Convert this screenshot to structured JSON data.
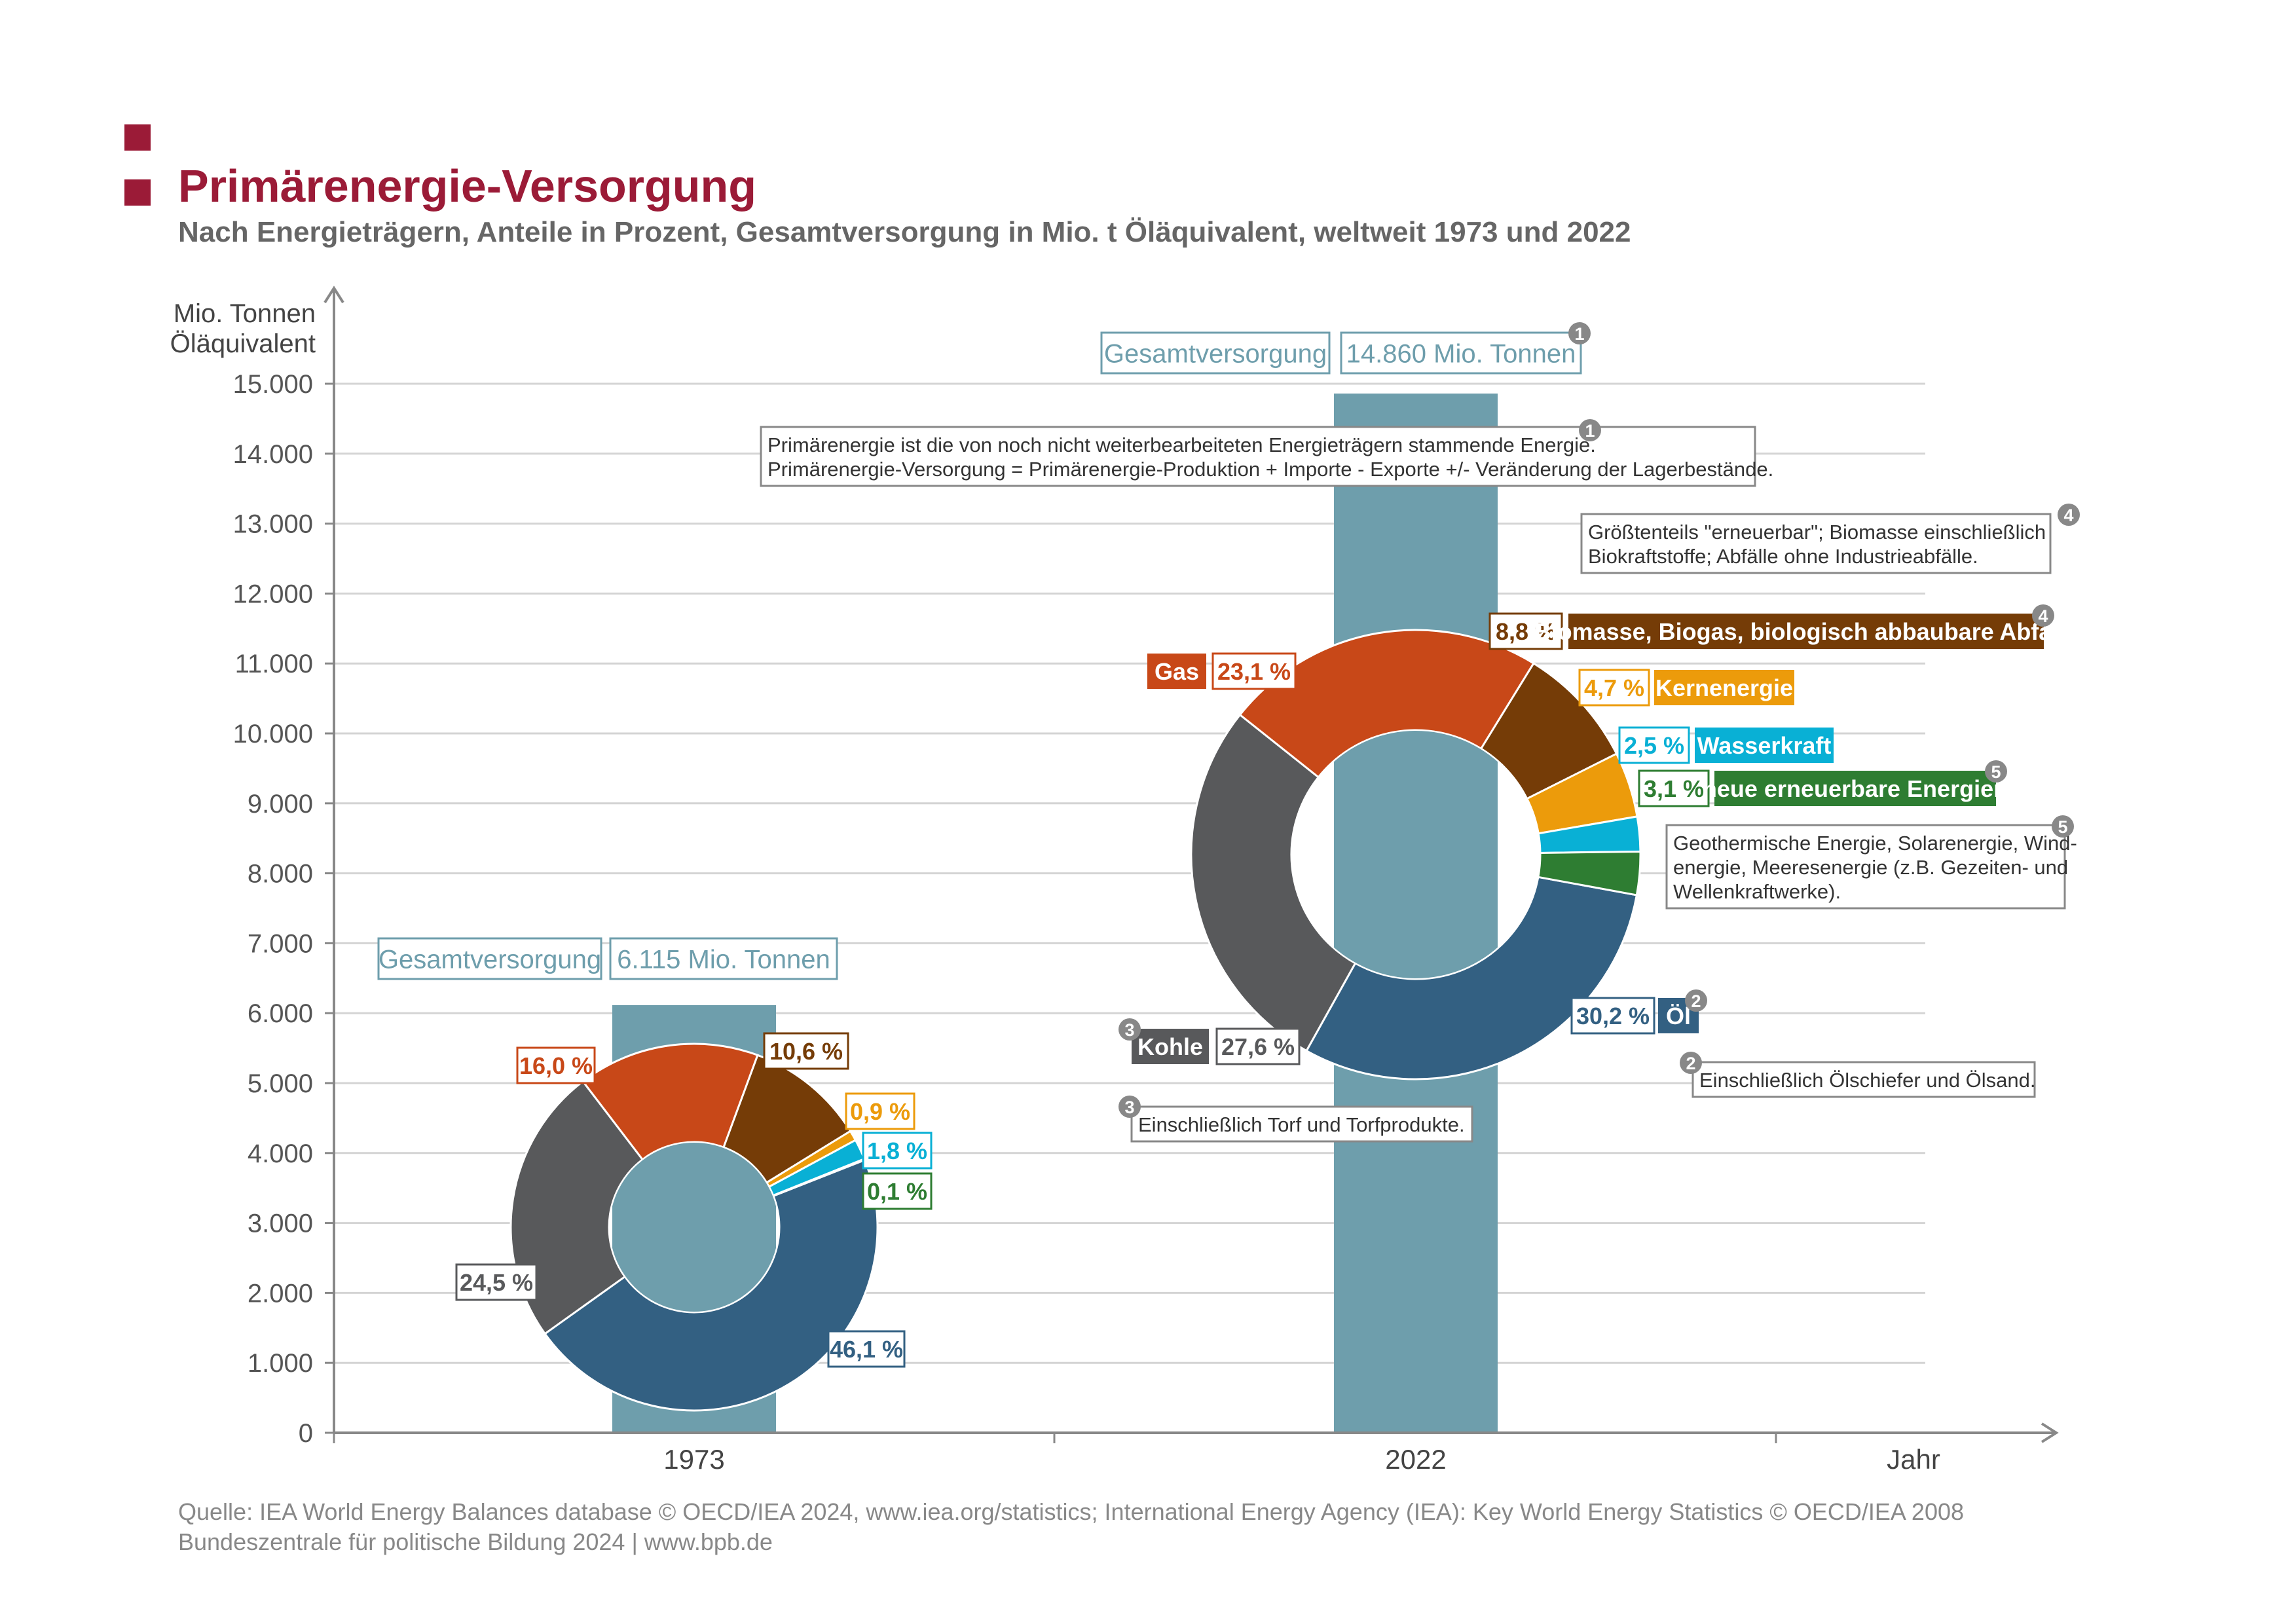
{
  "header": {
    "title": "Primärenergie-Versorgung",
    "subtitle": "Nach Energieträgern, Anteile in Prozent, Gesamtversorgung in Mio. t Öläquivalent, weltweit 1973 und 2022"
  },
  "footer": {
    "source_line1": "Quelle: IEA World Energy Balances database © OECD/IEA 2024, www.iea.org/statistics; International Energy Agency (IEA): Key World Energy Statistics © OECD/IEA 2008",
    "source_line2": "Bundeszentrale für politische Bildung 2024  |  www.bpb.de"
  },
  "colors": {
    "brand": "#9b1b37",
    "bar": "#6e9eac",
    "oil": "#336082",
    "coal": "#58595b",
    "gas": "#c84818",
    "biomass": "#753c07",
    "nuclear": "#ec9b0b",
    "hydro": "#09b0d5",
    "renewables": "#2e7d32",
    "grid": "#d4d4d4",
    "axis": "#888888",
    "badge": "#888888"
  },
  "chart_data": {
    "type": "bar",
    "categories": [
      "1973",
      "2022"
    ],
    "values": [
      6115,
      14860
    ],
    "ylim": [
      0,
      15000
    ],
    "yticks": [
      0,
      1000,
      2000,
      3000,
      4000,
      5000,
      6000,
      7000,
      8000,
      9000,
      10000,
      11000,
      12000,
      13000,
      14000,
      15000
    ],
    "ytick_labels": [
      "0",
      "1.000",
      "2.000",
      "3.000",
      "4.000",
      "5.000",
      "6.000",
      "7.000",
      "8.000",
      "9.000",
      "10.000",
      "11.000",
      "12.000",
      "13.000",
      "14.000",
      "15.000"
    ],
    "ylabel_line1": "Mio. Tonnen",
    "ylabel_line2": "Öläquivalent",
    "xlabel": "Jahr",
    "grid": true,
    "totals": [
      {
        "label": "Gesamtversorgung",
        "value": "6.115 Mio. Tonnen"
      },
      {
        "label": "Gesamtversorgung",
        "value": "14.860 Mio. Tonnen"
      }
    ],
    "series_order": [
      "Öl",
      "Kohle",
      "Gas",
      "Biomasse, Biogas, biologisch abbaubare Abfälle",
      "Kernenergie",
      "Wasserkraft",
      "neue erneuerbare Energien"
    ],
    "donuts": [
      {
        "year": "1973",
        "shares": [
          46.1,
          24.5,
          16.0,
          10.6,
          0.9,
          1.8,
          0.1
        ],
        "labels": [
          "46,1 %",
          "24,5 %",
          "16,0 %",
          "10,6 %",
          "0,9 %",
          "1,8 %",
          "0,1 %"
        ]
      },
      {
        "year": "2022",
        "shares": [
          30.2,
          27.6,
          23.1,
          8.8,
          4.7,
          2.5,
          3.1
        ],
        "labels": [
          "30,2 %",
          "27,6 %",
          "23,1 %",
          "8,8 %",
          "4,7 %",
          "2,5 %",
          "3,1 %"
        ]
      }
    ],
    "legend": {
      "oil": "Öl",
      "coal": "Kohle",
      "gas": "Gas",
      "biomass": "Biomasse, Biogas, biologisch abbaubare Abfälle",
      "nuclear": "Kernenergie",
      "hydro": "Wasserkraft",
      "renewables": "neue erneuerbare Energien"
    },
    "footnotes": {
      "note1_line1": "Primärenergie ist die von noch nicht weiterbearbeiteten Energieträgern stammende Energie.",
      "note1_line2": "Primärenergie-Versorgung = Primärenergie-Produktion + Importe - Exporte +/- Veränderung der Lagerbestände.",
      "note2": "Einschließlich Ölschiefer und Ölsand.",
      "note3": "Einschließlich Torf und Torfprodukte.",
      "note4_line1": "Größtenteils \"erneuerbar\"; Biomasse einschließlich",
      "note4_line2": "Biokraftstoffe; Abfälle ohne Industrieabfälle.",
      "note5_line1": "Geothermische Energie, Solarenergie, Wind-",
      "note5_line2": "energie, Meeresenergie (z.B. Gezeiten- und",
      "note5_line3": "Wellenkraftwerke)."
    },
    "badges": [
      "1",
      "2",
      "3",
      "4",
      "5"
    ]
  }
}
